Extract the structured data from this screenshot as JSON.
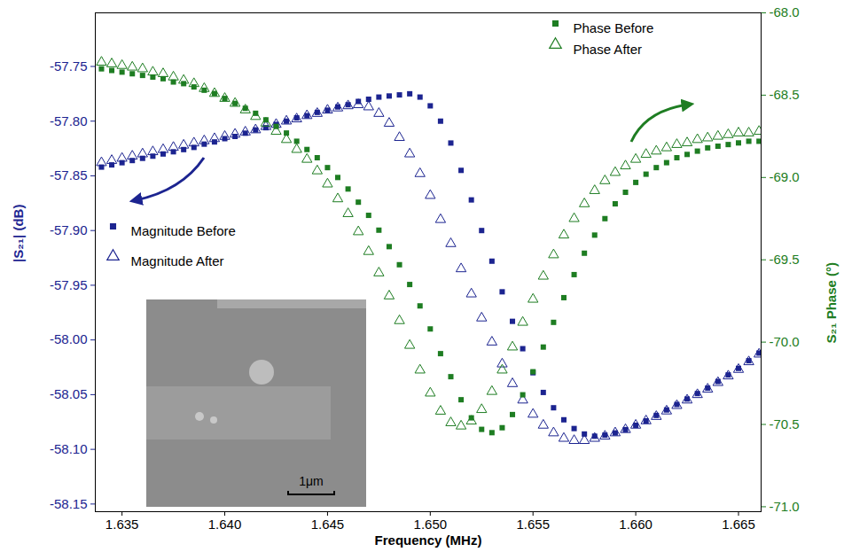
{
  "chart_data": {
    "type": "scatter",
    "xlabel": "Frequency (MHz)",
    "ylabel": "|S₂₁| (dB)",
    "y2label": "S₂₁ Phase (°)",
    "annotations": [
      "1μm"
    ],
    "legend": "top right",
    "grid": false,
    "xlim": [
      1.6337,
      1.6661
    ],
    "ylim": [
      -58.157,
      -57.701
    ],
    "y2lim": [
      -71.03,
      -68.0
    ],
    "xticks": [
      1.635,
      {
        "value": 1.64,
        "label": "1.640"
      },
      1.645,
      {
        "value": 1.65,
        "label": "1.650"
      },
      1.655,
      {
        "value": 1.66,
        "label": "1.660"
      },
      1.665
    ],
    "yticks": [
      -57.75,
      {
        "value": -57.8,
        "label": "-57.80"
      },
      -57.85,
      {
        "value": -57.9,
        "label": "-57.90"
      },
      -57.95,
      {
        "value": -58.0,
        "label": "-58.00"
      },
      -58.05,
      {
        "value": -58.1,
        "label": "-58.10"
      },
      -58.15
    ],
    "y2ticks": [
      {
        "value": -68.0,
        "label": "-68.0"
      },
      -68.5,
      {
        "value": -69.0,
        "label": "-69.0"
      },
      -69.5,
      {
        "value": -70.0,
        "label": "-70.0"
      },
      -70.5,
      {
        "value": -71.0,
        "label": "-71.0"
      }
    ],
    "x": [
      1.634,
      1.6345,
      1.635,
      1.6355,
      1.636,
      1.6365,
      1.637,
      1.6375,
      1.638,
      1.6385,
      1.639,
      1.6395,
      1.64,
      1.6405,
      1.641,
      1.6415,
      1.642,
      1.6425,
      1.643,
      1.6435,
      1.644,
      1.6445,
      1.645,
      1.6455,
      1.646,
      1.6465,
      1.647,
      1.6475,
      1.648,
      1.6485,
      1.649,
      1.6495,
      1.65,
      1.6505,
      1.651,
      1.6515,
      1.652,
      1.6525,
      1.653,
      1.6535,
      1.654,
      1.6545,
      1.655,
      1.6555,
      1.656,
      1.6565,
      1.657,
      1.6575,
      1.658,
      1.6585,
      1.659,
      1.6595,
      1.66,
      1.6605,
      1.661,
      1.6615,
      1.662,
      1.6625,
      1.663,
      1.6635,
      1.664,
      1.6645,
      1.665,
      1.6655,
      1.666
    ],
    "series": [
      {
        "name": "Magnitude Before",
        "color": "#1c2490",
        "marker": "square-filled",
        "values": [
          -57.842,
          -57.84,
          -57.838,
          -57.836,
          -57.834,
          -57.832,
          -57.83,
          -57.828,
          -57.826,
          -57.824,
          -57.821,
          -57.819,
          -57.816,
          -57.814,
          -57.811,
          -57.808,
          -57.806,
          -57.803,
          -57.8,
          -57.797,
          -57.795,
          -57.792,
          -57.79,
          -57.787,
          -57.785,
          -57.782,
          -57.78,
          -57.778,
          -57.777,
          -57.776,
          -57.775,
          -57.778,
          -57.786,
          -57.8,
          -57.82,
          -57.845,
          -57.872,
          -57.9,
          -57.928,
          -57.956,
          -57.983,
          -58.008,
          -58.03,
          -58.048,
          -58.062,
          -58.073,
          -58.081,
          -58.086,
          -58.088,
          -58.087,
          -58.085,
          -58.082,
          -58.078,
          -58.074,
          -58.069,
          -58.064,
          -58.059,
          -58.054,
          -58.049,
          -58.044,
          -58.038,
          -58.032,
          -58.026,
          -58.019,
          -58.012
        ]
      },
      {
        "name": "Magnitude After",
        "color": "#1c2490",
        "marker": "triangle-open",
        "values": [
          -57.838,
          -57.836,
          -57.834,
          -57.832,
          -57.83,
          -57.828,
          -57.826,
          -57.824,
          -57.822,
          -57.82,
          -57.818,
          -57.816,
          -57.814,
          -57.812,
          -57.81,
          -57.808,
          -57.805,
          -57.803,
          -57.8,
          -57.798,
          -57.795,
          -57.793,
          -57.79,
          -57.788,
          -57.786,
          -57.785,
          -57.787,
          -57.793,
          -57.802,
          -57.815,
          -57.83,
          -57.848,
          -57.868,
          -57.89,
          -57.912,
          -57.935,
          -57.958,
          -57.98,
          -58.002,
          -58.022,
          -58.04,
          -58.055,
          -58.068,
          -58.078,
          -58.085,
          -58.09,
          -58.092,
          -58.092,
          -58.09,
          -58.088,
          -58.085,
          -58.082,
          -58.078,
          -58.074,
          -58.07,
          -58.065,
          -58.06,
          -58.055,
          -58.05,
          -58.045,
          -58.039,
          -58.033,
          -58.027,
          -58.02,
          -58.013
        ]
      },
      {
        "name": "Phase Before",
        "color": "#1e7d22",
        "marker": "square-filled",
        "axis": "y2",
        "values": [
          -68.34,
          -68.35,
          -68.36,
          -68.37,
          -68.38,
          -68.39,
          -68.4,
          -68.42,
          -68.43,
          -68.45,
          -68.47,
          -68.49,
          -68.52,
          -68.55,
          -68.58,
          -68.61,
          -68.65,
          -68.69,
          -68.73,
          -68.78,
          -68.83,
          -68.88,
          -68.94,
          -69.0,
          -69.07,
          -69.15,
          -69.23,
          -69.32,
          -69.42,
          -69.53,
          -69.65,
          -69.78,
          -69.92,
          -70.07,
          -70.21,
          -70.35,
          -70.46,
          -70.53,
          -70.55,
          -70.52,
          -70.44,
          -70.32,
          -70.18,
          -70.03,
          -69.88,
          -69.73,
          -69.59,
          -69.46,
          -69.35,
          -69.25,
          -69.16,
          -69.09,
          -69.03,
          -68.98,
          -68.94,
          -68.91,
          -68.88,
          -68.86,
          -68.84,
          -68.82,
          -68.81,
          -68.8,
          -68.79,
          -68.78,
          -68.78
        ]
      },
      {
        "name": "Phase After",
        "color": "#1e7d22",
        "marker": "triangle-open",
        "axis": "y2",
        "values": [
          -68.3,
          -68.31,
          -68.32,
          -68.33,
          -68.34,
          -68.36,
          -68.37,
          -68.39,
          -68.41,
          -68.43,
          -68.46,
          -68.49,
          -68.52,
          -68.55,
          -68.59,
          -68.63,
          -68.67,
          -68.72,
          -68.77,
          -68.83,
          -68.89,
          -68.96,
          -69.04,
          -69.13,
          -69.22,
          -69.33,
          -69.45,
          -69.58,
          -69.72,
          -69.87,
          -70.02,
          -70.17,
          -70.31,
          -70.42,
          -70.49,
          -70.51,
          -70.48,
          -70.41,
          -70.3,
          -70.17,
          -70.03,
          -69.88,
          -69.74,
          -69.6,
          -69.47,
          -69.35,
          -69.25,
          -69.16,
          -69.08,
          -69.02,
          -68.97,
          -68.93,
          -68.89,
          -68.86,
          -68.84,
          -68.82,
          -68.8,
          -68.79,
          -68.77,
          -68.76,
          -68.75,
          -68.74,
          -68.73,
          -68.73,
          -68.72
        ]
      }
    ]
  }
}
